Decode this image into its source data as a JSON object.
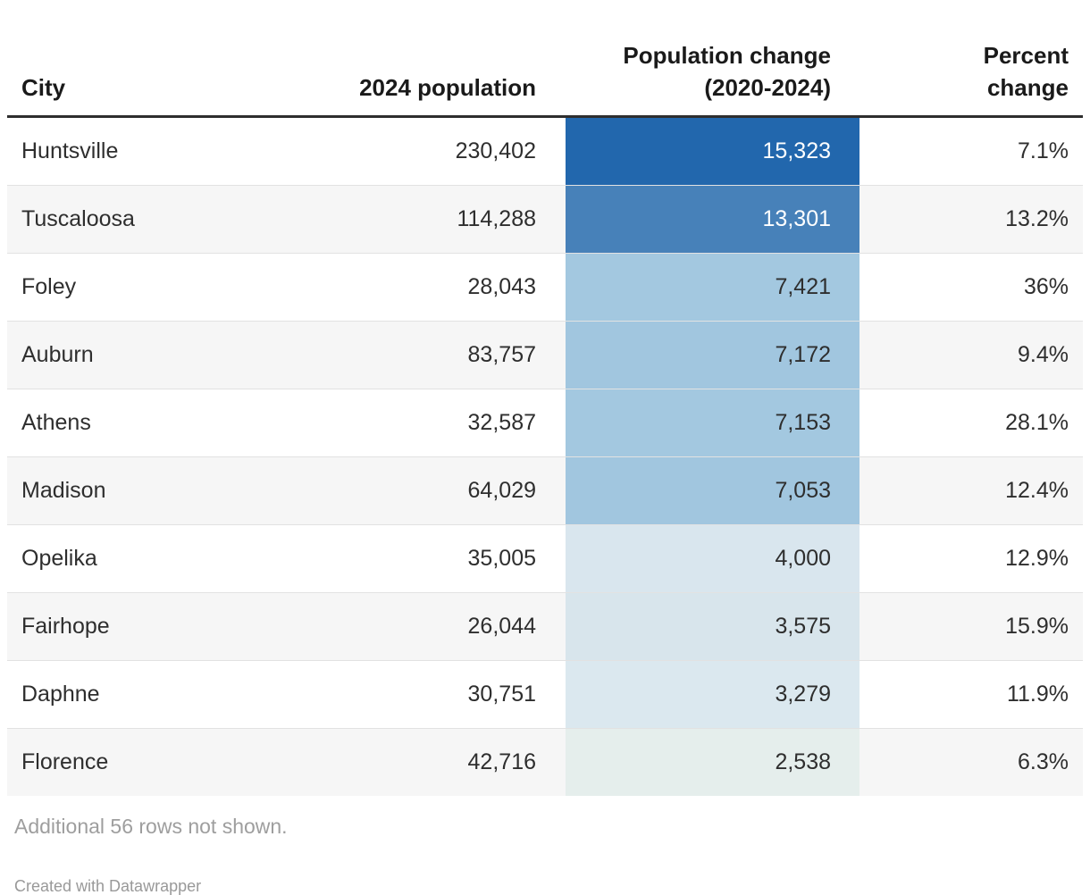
{
  "table": {
    "columns": [
      {
        "label": "City"
      },
      {
        "label": "2024 population"
      },
      {
        "label": "Population change\n(2020-2024)"
      },
      {
        "label": "Percent\nchange"
      }
    ],
    "rows": [
      {
        "city": "Huntsville",
        "population": "230,402",
        "change": "15,323",
        "percent": "7.1%",
        "change_bg": "#2267ad",
        "change_color": "#ffffff"
      },
      {
        "city": "Tuscaloosa",
        "population": "114,288",
        "change": "13,301",
        "percent": "13.2%",
        "change_bg": "#4781b9",
        "change_color": "#ffffff"
      },
      {
        "city": "Foley",
        "population": "28,043",
        "change": "7,421",
        "percent": "36%",
        "change_bg": "#a3c8e0",
        "change_color": "#2e2e2e"
      },
      {
        "city": "Auburn",
        "population": "83,757",
        "change": "7,172",
        "percent": "9.4%",
        "change_bg": "#a1c6df",
        "change_color": "#2e2e2e"
      },
      {
        "city": "Athens",
        "population": "32,587",
        "change": "7,153",
        "percent": "28.1%",
        "change_bg": "#a3c8e0",
        "change_color": "#2e2e2e"
      },
      {
        "city": "Madison",
        "population": "64,029",
        "change": "7,053",
        "percent": "12.4%",
        "change_bg": "#a1c6df",
        "change_color": "#2e2e2e"
      },
      {
        "city": "Opelika",
        "population": "35,005",
        "change": "4,000",
        "percent": "12.9%",
        "change_bg": "#d9e6ee",
        "change_color": "#2e2e2e"
      },
      {
        "city": "Fairhope",
        "population": "26,044",
        "change": "3,575",
        "percent": "15.9%",
        "change_bg": "#d8e5ec",
        "change_color": "#2e2e2e"
      },
      {
        "city": "Daphne",
        "population": "30,751",
        "change": "3,279",
        "percent": "11.9%",
        "change_bg": "#dbe8ef",
        "change_color": "#2e2e2e"
      },
      {
        "city": "Florence",
        "population": "42,716",
        "change": "2,538",
        "percent": "#",
        "change_bg": "#e5eeec",
        "change_color": "#2e2e2e"
      }
    ]
  },
  "footer": {
    "note": "Additional 56 rows not shown.",
    "attribution": "Created with Datawrapper"
  },
  "colors": {
    "header_rule": "#2e2e2e",
    "stripe": "#f6f6f6",
    "row_divider": "#e2e2e2",
    "heat_max": "#2267ad",
    "heat_min": "#e5eeec",
    "muted_text": "#9e9e9e"
  }
}
